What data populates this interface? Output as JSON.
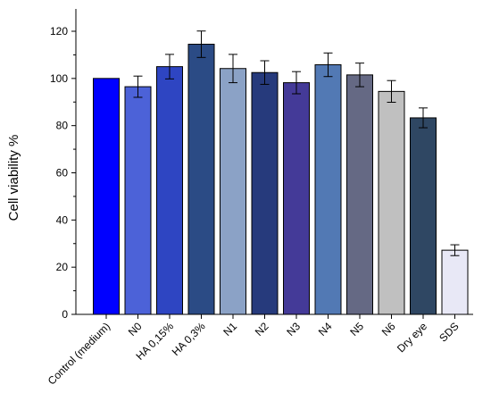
{
  "chart_data": {
    "type": "bar",
    "ylabel": "Cell viability %",
    "ylim": [
      0,
      130
    ],
    "yticks": [
      0,
      20,
      40,
      60,
      80,
      100,
      120
    ],
    "grid": false,
    "categories": [
      "Control (medium)",
      "N0",
      "HA 0,15%",
      "HA 0,3%",
      "N1",
      "N2",
      "N3",
      "N4",
      "N5",
      "N6",
      "Dry eye",
      "SDS"
    ],
    "values": [
      100,
      96.5,
      105,
      114.5,
      104.2,
      102.5,
      98.2,
      105.8,
      101.5,
      94.5,
      83.3,
      27.2
    ],
    "errors": [
      0,
      4.5,
      5.2,
      5.6,
      6.0,
      5.0,
      4.7,
      5.0,
      5.0,
      4.6,
      4.2,
      2.3
    ],
    "colors": [
      "#0000ff",
      "#4c62d8",
      "#2e45c2",
      "#2b4b85",
      "#8ba2c6",
      "#263a7c",
      "#443a98",
      "#5279b4",
      "#656984",
      "#c0c0c0",
      "#2f4763",
      "#e8e8f6"
    ]
  }
}
